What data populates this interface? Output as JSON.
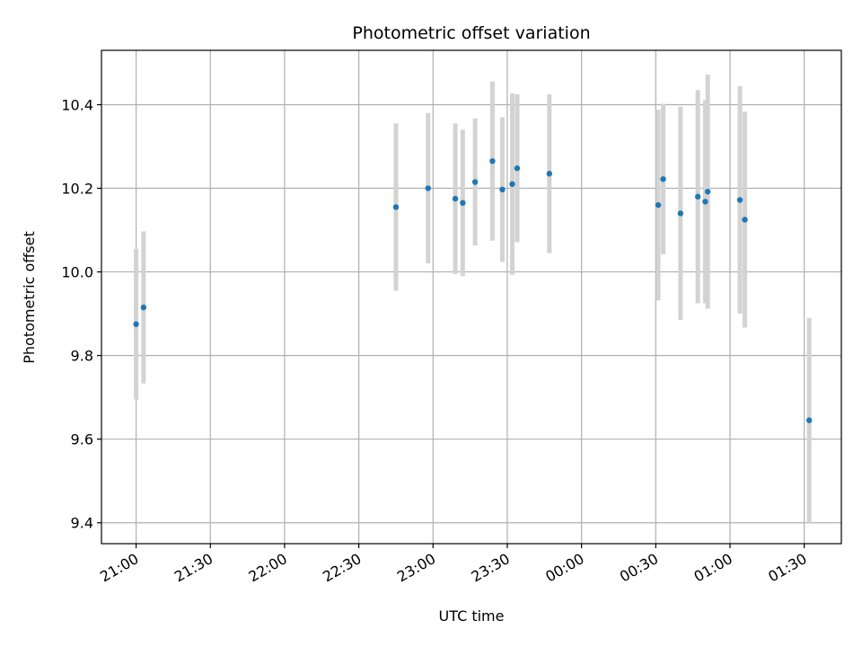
{
  "chart_data": {
    "type": "scatter",
    "title": "Photometric offset variation",
    "xlabel": "UTC time",
    "ylabel": "Photometric offset",
    "grid": true,
    "xlim": [
      "20:46",
      "01:45"
    ],
    "ylim": [
      9.35,
      10.53
    ],
    "x_ticks": [
      "21:00",
      "21:30",
      "22:00",
      "22:30",
      "23:00",
      "23:30",
      "00:00",
      "00:30",
      "01:00",
      "01:30"
    ],
    "y_ticks": [
      9.4,
      9.6,
      9.8,
      10.0,
      10.2,
      10.4
    ],
    "y_tick_labels": [
      "9.4",
      "9.6",
      "9.8",
      "10.0",
      "10.2",
      "10.4"
    ],
    "marker_color": "#1f77b4",
    "errorbar_color": "#d3d3d3",
    "series": [
      {
        "points": [
          {
            "x": "21:00",
            "y": 9.875,
            "err": 0.18
          },
          {
            "x": "21:03",
            "y": 9.915,
            "err": 0.182
          },
          {
            "x": "22:45",
            "y": 10.155,
            "err": 0.2
          },
          {
            "x": "22:58",
            "y": 10.2,
            "err": 0.18
          },
          {
            "x": "23:09",
            "y": 10.175,
            "err": 0.18
          },
          {
            "x": "23:12",
            "y": 10.165,
            "err": 0.175
          },
          {
            "x": "23:17",
            "y": 10.215,
            "err": 0.152
          },
          {
            "x": "23:24",
            "y": 10.265,
            "err": 0.19
          },
          {
            "x": "23:28",
            "y": 10.197,
            "err": 0.173
          },
          {
            "x": "23:32",
            "y": 10.21,
            "err": 0.217
          },
          {
            "x": "23:34",
            "y": 10.248,
            "err": 0.177
          },
          {
            "x": "23:47",
            "y": 10.235,
            "err": 0.19
          },
          {
            "x": "00:31",
            "y": 10.16,
            "err": 0.228
          },
          {
            "x": "00:33",
            "y": 10.222,
            "err": 0.18
          },
          {
            "x": "00:40",
            "y": 10.14,
            "err": 0.255
          },
          {
            "x": "00:47",
            "y": 10.18,
            "err": 0.255
          },
          {
            "x": "00:50",
            "y": 10.168,
            "err": 0.243
          },
          {
            "x": "00:51",
            "y": 10.192,
            "err": 0.28
          },
          {
            "x": "01:04",
            "y": 10.172,
            "err": 0.272
          },
          {
            "x": "01:06",
            "y": 10.125,
            "err": 0.258
          },
          {
            "x": "01:32",
            "y": 9.645,
            "err": 0.245
          }
        ]
      }
    ]
  }
}
